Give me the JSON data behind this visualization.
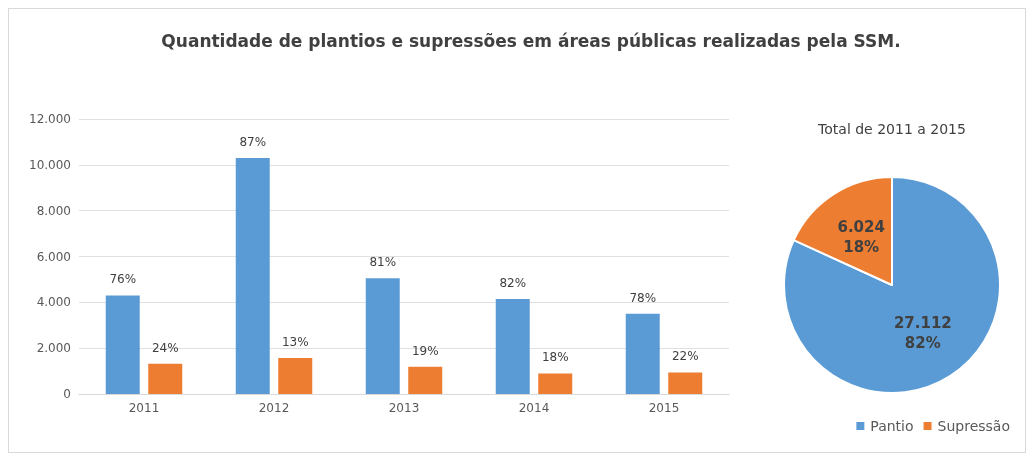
{
  "chart_data": [
    {
      "type": "bar",
      "title": "Quantidade de plantios e supressões em áreas públicas realizadas pela SSM.",
      "categories": [
        "2011",
        "2012",
        "2013",
        "2014",
        "2015"
      ],
      "series": [
        {
          "color": "#5b9bd5",
          "values": [
            4300,
            10300,
            5050,
            4150,
            3500
          ]
        },
        {
          "color": "#ed7d31",
          "values": [
            1320,
            1570,
            1190,
            900,
            940
          ]
        }
      ],
      "annotations": [
        {
          "text": "76%",
          "x": "2011",
          "y": 4300
        },
        {
          "text": "87%",
          "x": "2012",
          "y": 10300
        },
        {
          "text": "81%",
          "x": "2013",
          "y": 5050
        },
        {
          "text": "82%",
          "x": "2014",
          "y": 4150
        },
        {
          "text": "78%",
          "x": "2015",
          "y": 3500
        },
        {
          "text": "24%",
          "x": "2011",
          "y": 1320
        },
        {
          "text": "13%",
          "x": "2012",
          "y": 1570
        },
        {
          "text": "19%",
          "x": "2013",
          "y": 1190
        },
        {
          "text": "18%",
          "x": "2014",
          "y": 900
        },
        {
          "text": "22%",
          "x": "2015",
          "y": 940
        }
      ],
      "ylim": [
        0,
        12000
      ],
      "yticks": [
        0,
        {
          "value": 2000,
          "label": "2.000"
        },
        {
          "value": 4000,
          "label": "4.000"
        },
        {
          "value": 6000,
          "label": "6.000"
        },
        {
          "value": 8000,
          "label": "8.000"
        },
        {
          "value": 10000,
          "label": "10.000"
        },
        {
          "value": 12000,
          "label": "12.000"
        }
      ],
      "grid": "y",
      "legend": false
    },
    {
      "type": "pie",
      "title": "Total de 2011 a 2015",
      "categories": [
        "Pantio",
        "Supressão"
      ],
      "values": [
        27112,
        6024
      ],
      "colors": [
        "#5b9bd5",
        "#ed7d31"
      ],
      "value_labels": [
        "27.112\n82%",
        "6.024\n18%"
      ],
      "legend": "bottom right"
    }
  ]
}
